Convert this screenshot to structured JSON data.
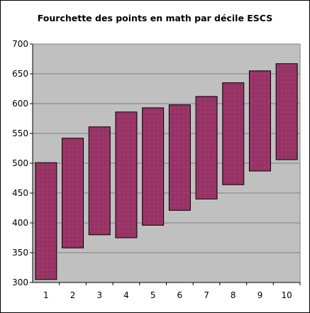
{
  "chart_data": {
    "type": "bar",
    "subtype": "floating-range",
    "title": "Fourchette des points en math par décile ESCS",
    "categories": [
      "1",
      "2",
      "3",
      "4",
      "5",
      "6",
      "7",
      "8",
      "9",
      "10"
    ],
    "series": [
      {
        "low": [
          305,
          358,
          380,
          375,
          396,
          421,
          440,
          464,
          487,
          506
        ],
        "high": [
          501,
          542,
          561,
          586,
          593,
          598,
          612,
          635,
          655,
          667
        ]
      }
    ],
    "ylim": [
      300,
      700
    ],
    "yticks": [
      300,
      350,
      400,
      450,
      500,
      550,
      600,
      650,
      700
    ],
    "grid": true,
    "colors": {
      "plot_background": "#c0c0c0",
      "bar_fill": "#993366",
      "bar_edge": "#000000",
      "grid": "#808080"
    }
  }
}
